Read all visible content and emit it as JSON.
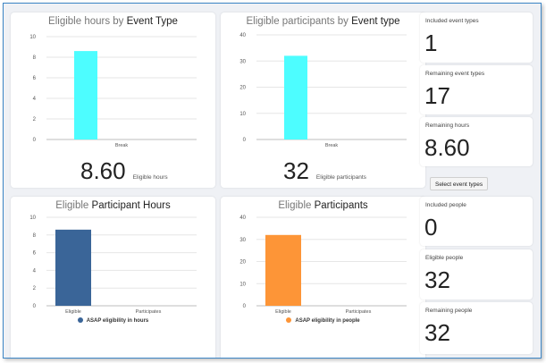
{
  "colors": {
    "cyan": "#4dfdff",
    "navy": "#3a6598",
    "orange": "#fd9537",
    "grid": "#e6e6e6",
    "axis": "#bdbdbd"
  },
  "cards": [
    {
      "title_prefix": "Eligible hours by ",
      "title_strong": "Event Type",
      "big_value": "8.60",
      "big_label": "Eligible hours"
    },
    {
      "title_prefix": "Eligible participants by ",
      "title_strong": "Event type",
      "big_value": "32",
      "big_label": "Eligible participants"
    },
    {
      "title_prefix": "Eligible ",
      "title_strong": "Participant Hours",
      "legend": "ASAP eligibility in hours"
    },
    {
      "title_prefix": "Eligible ",
      "title_strong": "Participants",
      "legend": "ASAP eligibility in people"
    }
  ],
  "chart_data": [
    {
      "type": "bar",
      "title": "Eligible hours by Event Type",
      "categories": [
        "Break"
      ],
      "values": [
        8.6
      ],
      "ylim": [
        0,
        10
      ],
      "yticks": [
        0,
        2,
        4,
        6,
        8,
        10
      ],
      "color": "#4dfdff",
      "grid": true
    },
    {
      "type": "bar",
      "title": "Eligible participants by Event type",
      "categories": [
        "Break"
      ],
      "values": [
        32
      ],
      "ylim": [
        0,
        40
      ],
      "yticks": [
        0,
        10,
        20,
        30,
        40
      ],
      "color": "#4dfdff",
      "grid": true
    },
    {
      "type": "bar",
      "title": "Eligible Participant Hours",
      "categories": [
        "Eligible",
        "Participates"
      ],
      "series": [
        {
          "name": "ASAP eligibility in hours",
          "values": [
            8.6,
            0
          ]
        }
      ],
      "ylim": [
        0,
        10
      ],
      "yticks": [
        0,
        2,
        4,
        6,
        8,
        10
      ],
      "color": "#3a6598",
      "grid": true,
      "legend": "bottom"
    },
    {
      "type": "bar",
      "title": "Eligible Participants",
      "categories": [
        "Eligible",
        "Participates"
      ],
      "series": [
        {
          "name": "ASAP eligibility in people",
          "values": [
            32,
            0
          ]
        }
      ],
      "ylim": [
        0,
        40
      ],
      "yticks": [
        0,
        10,
        20,
        30,
        40
      ],
      "color": "#fd9537",
      "grid": true,
      "legend": "bottom"
    }
  ],
  "stats": [
    {
      "label": "Included event types",
      "value": "1"
    },
    {
      "label": "Remaining event types",
      "value": "17"
    },
    {
      "label": "Remaining hours",
      "value": "8.60"
    },
    {
      "label": "Included people",
      "value": "0"
    },
    {
      "label": "Eligible people",
      "value": "32"
    },
    {
      "label": "Remaining people",
      "value": "32"
    }
  ],
  "select_button": "Select event types"
}
